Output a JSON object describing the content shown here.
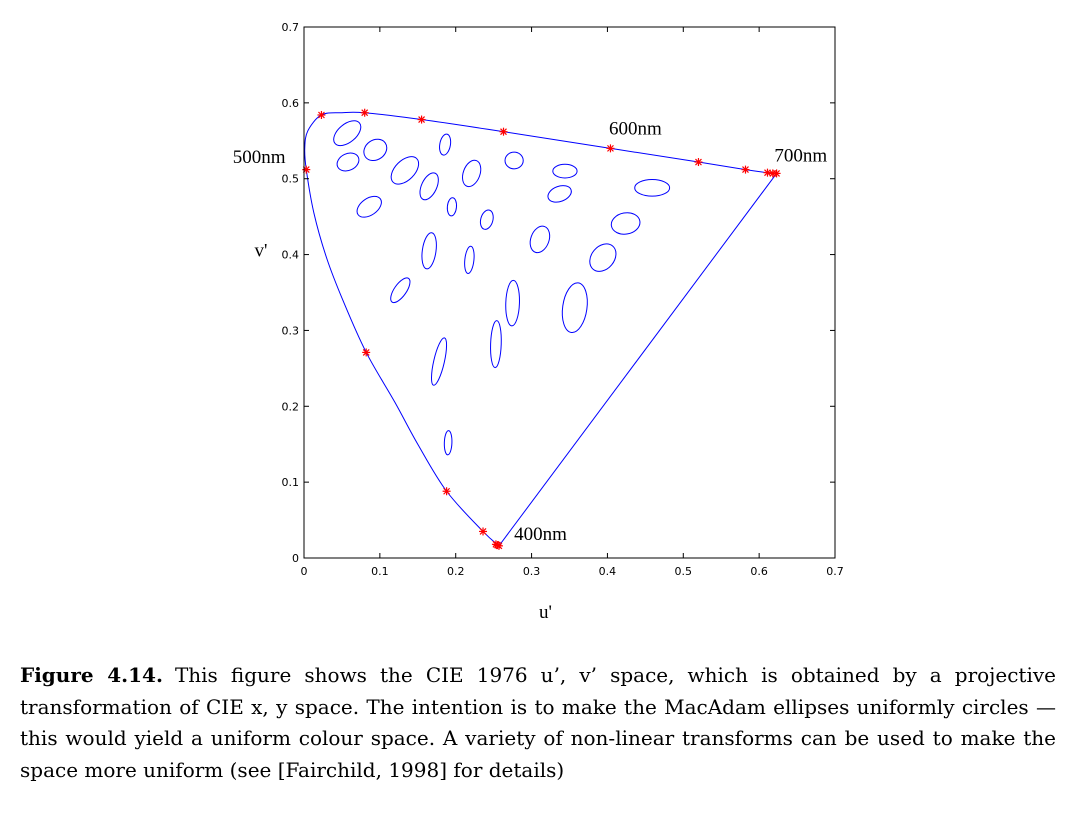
{
  "chart_data": {
    "type": "line",
    "xlabel": "u'",
    "ylabel": "v'",
    "xlim": [
      0,
      0.7
    ],
    "ylim": [
      0,
      0.7
    ],
    "xticks": [
      "0",
      "0.1",
      "0.2",
      "0.3",
      "0.4",
      "0.5",
      "0.6",
      "0.7"
    ],
    "yticks": [
      "0",
      "0.1",
      "0.2",
      "0.3",
      "0.4",
      "0.5",
      "0.6",
      "0.7"
    ],
    "grid": false,
    "line_color": "#0000ff",
    "marker_color": "#ff0000",
    "spectral_locus": [
      [
        0.257,
        0.016
      ],
      [
        0.236,
        0.035
      ],
      [
        0.188,
        0.088
      ],
      [
        0.15,
        0.15
      ],
      [
        0.12,
        0.205
      ],
      [
        0.082,
        0.271
      ],
      [
        0.052,
        0.338
      ],
      [
        0.03,
        0.395
      ],
      [
        0.013,
        0.455
      ],
      [
        0.003,
        0.512
      ],
      [
        0.001,
        0.54
      ],
      [
        0.005,
        0.563
      ],
      [
        0.023,
        0.584
      ],
      [
        0.05,
        0.587
      ],
      [
        0.08,
        0.587
      ],
      [
        0.155,
        0.578
      ],
      [
        0.263,
        0.562
      ],
      [
        0.404,
        0.54
      ],
      [
        0.52,
        0.522
      ],
      [
        0.582,
        0.512
      ],
      [
        0.611,
        0.508
      ],
      [
        0.623,
        0.507
      ]
    ],
    "purple_line": [
      [
        0.623,
        0.507
      ],
      [
        0.257,
        0.016
      ]
    ],
    "markers": [
      [
        0.257,
        0.016
      ],
      [
        0.255,
        0.017
      ],
      [
        0.253,
        0.018
      ],
      [
        0.236,
        0.035
      ],
      [
        0.188,
        0.088
      ],
      [
        0.082,
        0.271
      ],
      [
        0.003,
        0.512
      ],
      [
        0.023,
        0.584
      ],
      [
        0.08,
        0.587
      ],
      [
        0.155,
        0.578
      ],
      [
        0.263,
        0.562
      ],
      [
        0.404,
        0.54
      ],
      [
        0.52,
        0.522
      ],
      [
        0.582,
        0.512
      ],
      [
        0.611,
        0.508
      ],
      [
        0.618,
        0.507
      ],
      [
        0.623,
        0.507
      ]
    ],
    "ellipses": [
      {
        "cx": 0.057,
        "cy": 0.56,
        "rx": 0.021,
        "ry": 0.012,
        "angle": 40
      },
      {
        "cx": 0.058,
        "cy": 0.522,
        "rx": 0.015,
        "ry": 0.011,
        "angle": 25
      },
      {
        "cx": 0.094,
        "cy": 0.538,
        "rx": 0.016,
        "ry": 0.013,
        "angle": 35
      },
      {
        "cx": 0.133,
        "cy": 0.511,
        "rx": 0.022,
        "ry": 0.013,
        "angle": 45
      },
      {
        "cx": 0.165,
        "cy": 0.49,
        "rx": 0.019,
        "ry": 0.01,
        "angle": 65
      },
      {
        "cx": 0.186,
        "cy": 0.545,
        "rx": 0.014,
        "ry": 0.007,
        "angle": 80
      },
      {
        "cx": 0.221,
        "cy": 0.507,
        "rx": 0.018,
        "ry": 0.011,
        "angle": 70
      },
      {
        "cx": 0.277,
        "cy": 0.524,
        "rx": 0.012,
        "ry": 0.011,
        "angle": 0
      },
      {
        "cx": 0.344,
        "cy": 0.51,
        "rx": 0.016,
        "ry": 0.009,
        "angle": 0
      },
      {
        "cx": 0.086,
        "cy": 0.463,
        "rx": 0.018,
        "ry": 0.011,
        "angle": 35
      },
      {
        "cx": 0.195,
        "cy": 0.463,
        "rx": 0.012,
        "ry": 0.006,
        "angle": 85
      },
      {
        "cx": 0.241,
        "cy": 0.446,
        "rx": 0.013,
        "ry": 0.008,
        "angle": 75
      },
      {
        "cx": 0.337,
        "cy": 0.48,
        "rx": 0.016,
        "ry": 0.01,
        "angle": 20
      },
      {
        "cx": 0.459,
        "cy": 0.488,
        "rx": 0.023,
        "ry": 0.011,
        "angle": 0
      },
      {
        "cx": 0.424,
        "cy": 0.441,
        "rx": 0.019,
        "ry": 0.014,
        "angle": 10
      },
      {
        "cx": 0.311,
        "cy": 0.42,
        "rx": 0.018,
        "ry": 0.012,
        "angle": 70
      },
      {
        "cx": 0.165,
        "cy": 0.405,
        "rx": 0.024,
        "ry": 0.009,
        "angle": 82
      },
      {
        "cx": 0.218,
        "cy": 0.393,
        "rx": 0.018,
        "ry": 0.006,
        "angle": 84
      },
      {
        "cx": 0.394,
        "cy": 0.396,
        "rx": 0.02,
        "ry": 0.015,
        "angle": 50
      },
      {
        "cx": 0.127,
        "cy": 0.353,
        "rx": 0.019,
        "ry": 0.008,
        "angle": 55
      },
      {
        "cx": 0.275,
        "cy": 0.336,
        "rx": 0.03,
        "ry": 0.009,
        "angle": 88
      },
      {
        "cx": 0.357,
        "cy": 0.33,
        "rx": 0.033,
        "ry": 0.016,
        "angle": 82
      },
      {
        "cx": 0.253,
        "cy": 0.282,
        "rx": 0.031,
        "ry": 0.007,
        "angle": 88
      },
      {
        "cx": 0.178,
        "cy": 0.259,
        "rx": 0.032,
        "ry": 0.007,
        "angle": 77
      },
      {
        "cx": 0.19,
        "cy": 0.152,
        "rx": 0.016,
        "ry": 0.005,
        "angle": 88
      }
    ],
    "annotations": [
      {
        "text": "500nm",
        "x": -0.094,
        "y": 0.521
      },
      {
        "text": "600nm",
        "x": 0.402,
        "y": 0.558
      },
      {
        "text": "700nm",
        "x": 0.62,
        "y": 0.523
      },
      {
        "text": "400nm",
        "x": 0.277,
        "y": 0.024
      }
    ]
  },
  "caption": {
    "label": "Figure 4.14.",
    "text": "This figure shows the CIE 1976 u’, v’ space, which is obtained by a projective transformation of CIE x, y space.  The intention is to make the MacAdam ellipses uniformly circles — this would yield a uniform colour space.  A variety of non-linear transforms can be used to make the space more uniform (see [Fairchild, 1998] for details)"
  }
}
